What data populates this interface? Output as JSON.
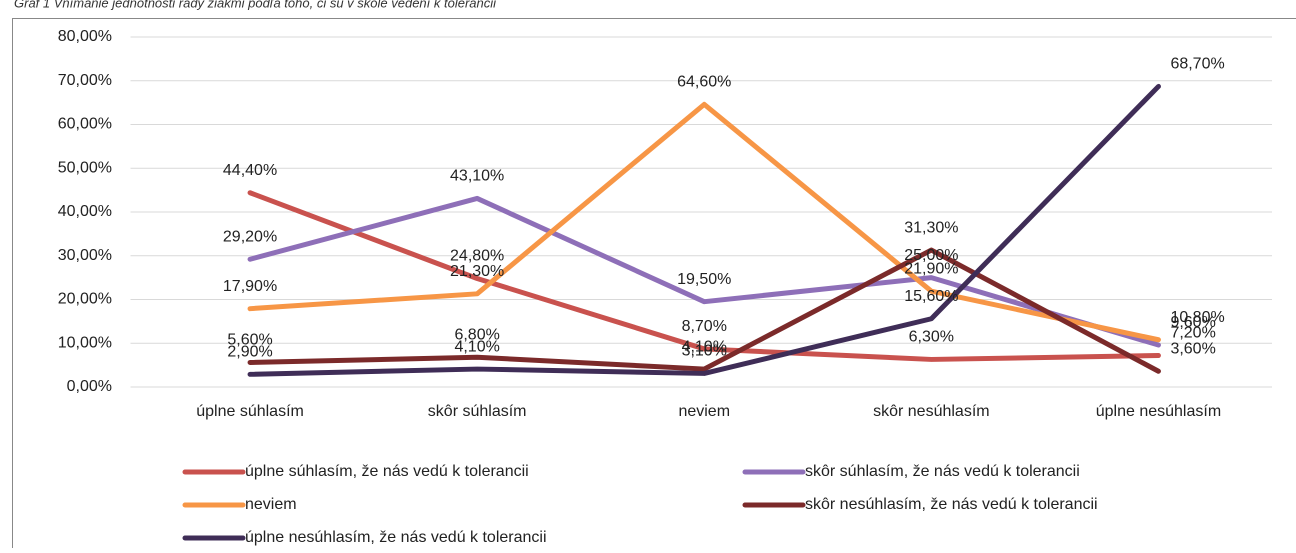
{
  "chart_data": {
    "type": "line",
    "title": "Graf 1 Vnímanie jednotnosti rady žiakmi podľa toho, či sú v škole vedení k tolerancii",
    "categories": [
      "úplne súhlasím",
      "skôr súhlasím",
      "neviem",
      "skôr nesúhlasím",
      "úplne nesúhlasím"
    ],
    "series": [
      {
        "name": "úplne súhlasím, že nás vedú k tolerancii",
        "color": "#c9524e",
        "values": [
          44.4,
          24.8,
          8.7,
          6.3,
          7.2
        ],
        "value_labels": [
          "44,40%",
          "24,80%",
          "8,70%",
          "6,30%",
          "7,20%"
        ]
      },
      {
        "name": "skôr súhlasím, že nás vedú k tolerancii",
        "color": "#8e6fb8",
        "values": [
          29.2,
          43.1,
          19.5,
          25.0,
          9.6
        ],
        "value_labels": [
          "29,20%",
          "43,10%",
          "19,50%",
          "25,00%",
          "9,60%"
        ]
      },
      {
        "name": "neviem",
        "color": "#f79646",
        "values": [
          17.9,
          21.3,
          64.6,
          21.9,
          10.8
        ],
        "value_labels": [
          "17,90%",
          "21,30%",
          "64,60%",
          "21,90%",
          "10,80%"
        ]
      },
      {
        "name": "skôr nesúhlasím, že nás vedú k tolerancii",
        "color": "#7b2a2a",
        "values": [
          5.6,
          6.8,
          4.1,
          31.3,
          3.6
        ],
        "value_labels": [
          "5,60%",
          "6,80%",
          "4,10%",
          "31,30%",
          "3,60%"
        ]
      },
      {
        "name": "úplne nesúhlasím, že nás vedú k tolerancii",
        "color": "#3f2d57",
        "values": [
          2.9,
          4.1,
          3.1,
          15.6,
          68.7
        ],
        "value_labels": [
          "2,90%",
          "4,10%",
          "3,10%",
          "15,60%",
          "68,70%"
        ]
      }
    ],
    "ylim": [
      0,
      80
    ],
    "yticks": [
      {
        "value": 0,
        "label": "0,00%"
      },
      {
        "value": 10,
        "label": "10,00%"
      },
      {
        "value": 20,
        "label": "20,00%"
      },
      {
        "value": 30,
        "label": "30,00%"
      },
      {
        "value": 40,
        "label": "40,00%"
      },
      {
        "value": 50,
        "label": "50,00%"
      },
      {
        "value": 60,
        "label": "60,00%"
      },
      {
        "value": 70,
        "label": "70,00%"
      },
      {
        "value": 80,
        "label": "80,00%"
      }
    ],
    "grid": true,
    "legend": "bottom"
  }
}
